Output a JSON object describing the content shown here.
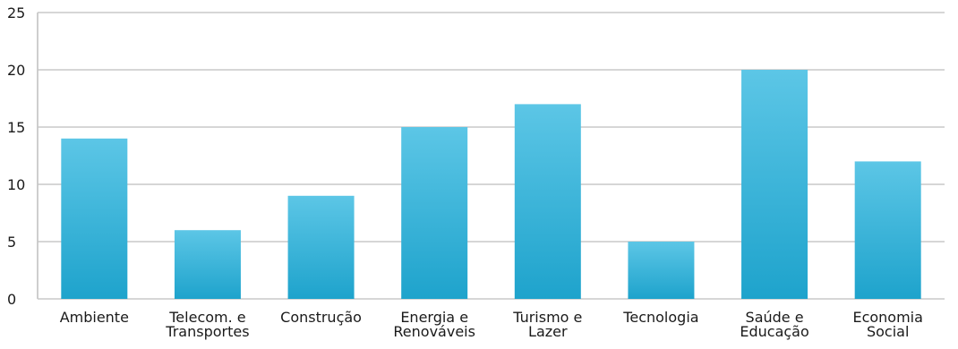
{
  "chart_data": {
    "type": "bar",
    "title": "",
    "xlabel": "",
    "ylabel": "",
    "categories": [
      [
        "Ambiente"
      ],
      [
        "Telecom. e",
        "Transportes"
      ],
      [
        "Construção"
      ],
      [
        "Energia e",
        "Renováveis"
      ],
      [
        "Turismo e",
        "Lazer"
      ],
      [
        "Tecnologia"
      ],
      [
        "Saúde e",
        "Educação"
      ],
      [
        "Economia",
        "Social"
      ]
    ],
    "values": [
      14,
      6,
      9,
      15,
      17,
      5,
      20,
      12
    ],
    "ylim": [
      0,
      25
    ],
    "yticks": [
      0,
      5,
      10,
      15,
      20,
      25
    ],
    "grid": true,
    "legend": "none",
    "colors": {
      "bar_top": "#5cc6e6",
      "bar_bottom": "#1ea3cc",
      "grid": "#c8c8c8",
      "axis": "#bdbdbd"
    }
  }
}
